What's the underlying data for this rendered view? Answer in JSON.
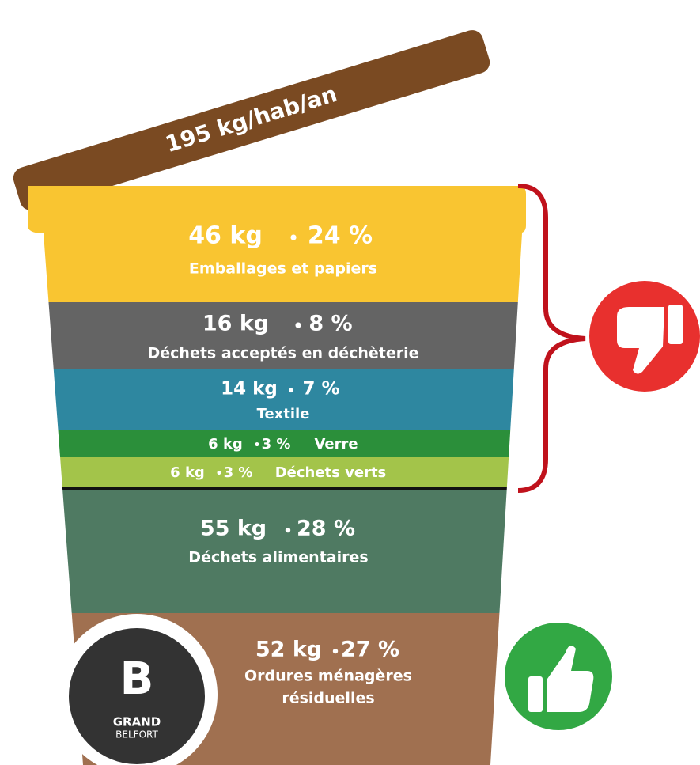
{
  "lid": "195 kg/hab/an",
  "layers": [
    {
      "amount": "46 kg",
      "share": "24 %",
      "label": "Emballages et papiers"
    },
    {
      "amount": "16 kg",
      "share": "8 %",
      "label": "Déchets acceptés en déchèterie"
    },
    {
      "amount": "14 kg",
      "share": "7 %",
      "label": "Textile"
    },
    {
      "amount": "6 kg",
      "share": "3 %",
      "label": "Verre"
    },
    {
      "amount": "6 kg",
      "share": "3 %",
      "label": "Déchets verts"
    },
    {
      "amount": "55 kg",
      "share": "28 %",
      "label": "Déchets alimentaires"
    },
    {
      "amount": "52 kg",
      "share": "27 %",
      "label": "Ordures ménagères",
      "label2": "résiduelles"
    }
  ],
  "logo": {
    "letter": "B",
    "line1": "GRAND",
    "line2": "BELFORT"
  }
}
